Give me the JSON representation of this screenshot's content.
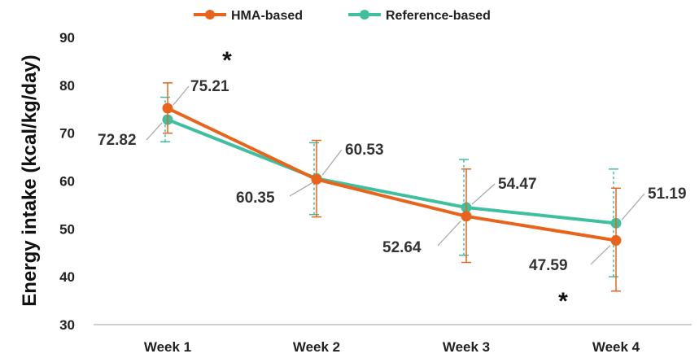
{
  "chart_data": {
    "type": "line",
    "categories": [
      "Week 1",
      "Week 2",
      "Week 3",
      "Week 4"
    ],
    "ylabel": "Energy intake (kcal/kg/day)",
    "xlabel": "",
    "ylim": [
      30,
      90
    ],
    "yticks": [
      30,
      40,
      50,
      60,
      70,
      80,
      90
    ],
    "grid": false,
    "legend_position": "top-center",
    "series": [
      {
        "name": "HMA-based",
        "color": "#E8641B",
        "values": [
          75.21,
          60.35,
          52.64,
          47.59
        ],
        "error_low": [
          70.0,
          52.5,
          43.0,
          37.0
        ],
        "error_high": [
          80.5,
          68.5,
          62.5,
          58.5
        ],
        "labels": [
          "75.21",
          "60.35",
          "52.64",
          "47.59"
        ]
      },
      {
        "name": "Reference-based",
        "color": "#3FBFA0",
        "values": [
          72.82,
          60.53,
          54.47,
          51.19
        ],
        "error_low": [
          68.2,
          53.0,
          44.5,
          40.0
        ],
        "error_high": [
          77.5,
          68.0,
          64.5,
          62.5
        ],
        "labels": [
          "72.82",
          "60.53",
          "54.47",
          "51.19"
        ]
      }
    ],
    "annotations": [
      {
        "text": "*",
        "category": "Week 1",
        "note": "significance"
      },
      {
        "text": "*",
        "category": "Week 4",
        "note": "significance"
      }
    ]
  }
}
